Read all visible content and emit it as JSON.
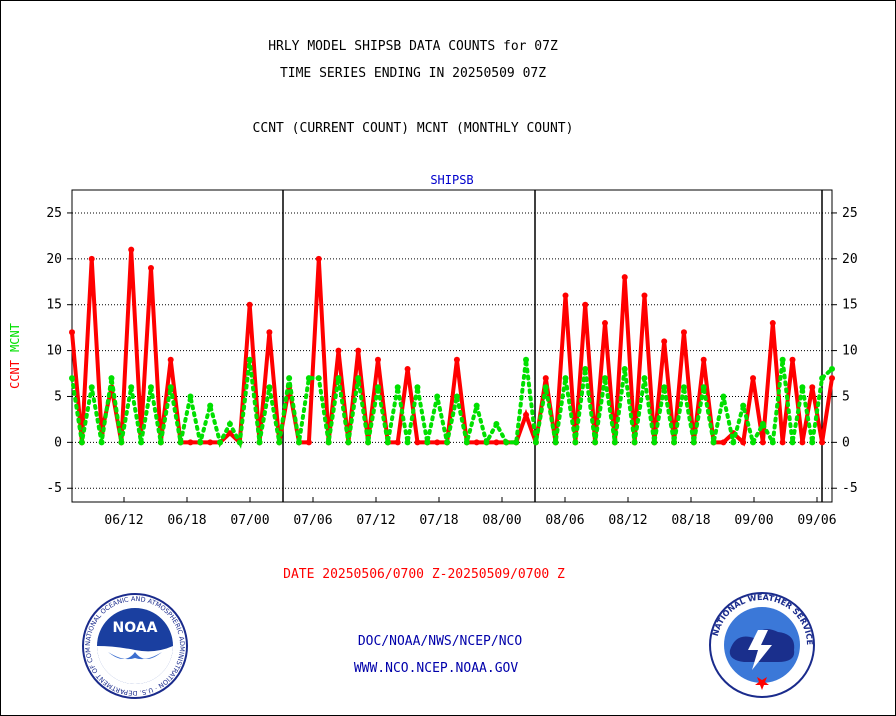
{
  "header": {
    "title_line1": "HRLY MODEL SHIPSB DATA COUNTS for 07Z",
    "title_line2": "TIME SERIES ENDING IN 20250509 07Z",
    "subtitle": "CCNT (CURRENT COUNT) MCNT (MONTHLY COUNT)"
  },
  "footer": {
    "date_range": "DATE 20250506/0700 Z-20250509/0700 Z",
    "org_line": "DOC/NOAA/NWS/NCEP/NCO",
    "url_line": "WWW.NCO.NCEP.NOAA.GOV"
  },
  "logos": {
    "noaa_text": "NOAA",
    "noaa_ring": "NATIONAL OCEANIC AND ATMOSPHERIC ADMINISTRATION · U.S. DEPARTMENT OF COMMERCE",
    "nws_ring": "NATIONAL WEATHER SERVICE"
  },
  "colors": {
    "ccnt": "#ff0000",
    "mcnt": "#00e000",
    "plot_title": "#0000cc",
    "date_text": "#ff0000",
    "link_text": "#0000aa"
  },
  "chart_data": {
    "type": "line",
    "title": "SHIPSB",
    "ylabel_parts": [
      "CCNT",
      "MCNT"
    ],
    "ylim": [
      -6.5,
      27.5
    ],
    "yticks": [
      -5,
      0,
      5,
      10,
      15,
      20,
      25
    ],
    "grid": true,
    "x_tick_labels": [
      "06/12",
      "06/18",
      "07/00",
      "07/06",
      "07/12",
      "07/18",
      "08/00",
      "08/06",
      "08/12",
      "08/18",
      "09/00",
      "09/06"
    ],
    "day_boundaries_at_tick_index": [
      3,
      7
    ],
    "series": [
      {
        "name": "CCNT",
        "values": [
          12,
          0,
          20,
          1,
          6,
          0,
          21,
          1,
          19,
          0,
          9,
          0,
          0,
          0,
          0,
          0,
          1,
          0,
          15,
          0,
          12,
          0,
          6,
          0,
          0,
          20,
          0,
          10,
          0,
          10,
          0,
          9,
          0,
          0,
          8,
          0,
          0,
          0,
          0,
          9,
          0,
          0,
          0,
          0,
          0,
          0,
          3,
          0,
          7,
          0,
          16,
          0,
          15,
          0,
          13,
          0,
          18,
          0,
          16,
          0,
          11,
          0,
          12,
          0,
          9,
          0,
          0,
          1,
          0,
          7,
          0,
          13,
          0,
          9,
          0,
          6,
          0,
          7
        ]
      },
      {
        "name": "MCNT",
        "values": [
          7,
          0,
          6,
          0,
          7,
          0,
          6,
          0,
          6,
          0,
          6,
          0,
          5,
          0,
          4,
          0,
          2,
          0,
          9,
          0,
          6,
          0,
          7,
          0,
          7,
          7,
          0,
          7,
          0,
          7,
          0,
          6,
          0,
          6,
          0,
          6,
          0,
          5,
          0,
          5,
          0,
          4,
          0,
          2,
          0,
          0,
          9,
          0,
          6,
          0,
          7,
          0,
          8,
          0,
          7,
          0,
          8,
          0,
          7,
          0,
          6,
          0,
          6,
          0,
          6,
          0,
          5,
          0,
          4,
          0,
          2,
          0,
          9,
          0,
          6,
          0,
          7,
          8
        ]
      }
    ]
  }
}
